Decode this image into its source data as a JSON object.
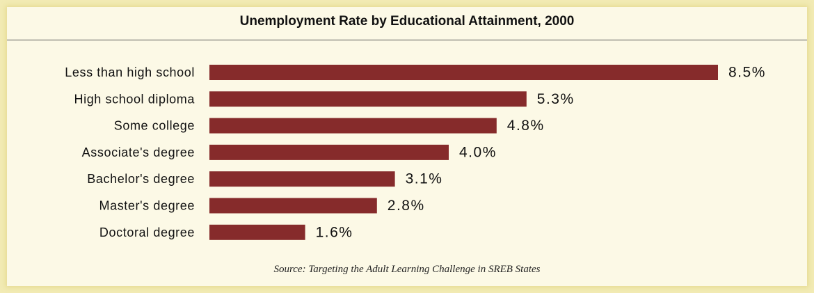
{
  "chart_data": {
    "type": "bar",
    "orientation": "horizontal",
    "title": "Unemployment Rate by Educational Attainment, 2000",
    "categories": [
      "Less than high school",
      "High school diploma",
      "Some college",
      "Associate's degree",
      "Bachelor's degree",
      "Master's degree",
      "Doctoral degree"
    ],
    "values": [
      8.5,
      5.3,
      4.8,
      4.0,
      3.1,
      2.8,
      1.6
    ],
    "value_labels": [
      "8.5%",
      "5.3%",
      "4.8%",
      "4.0%",
      "3.1%",
      "2.8%",
      "1.6%"
    ],
    "unit": "%",
    "xlim": [
      0,
      8.5
    ],
    "grid": false,
    "bar_color": "#862b2b"
  },
  "source": "Source: Targeting the Adult Learning Challenge in SREB States",
  "colors": {
    "frame": "#f2ebb4",
    "panel": "#fcf9e6",
    "bar": "#862b2b"
  }
}
